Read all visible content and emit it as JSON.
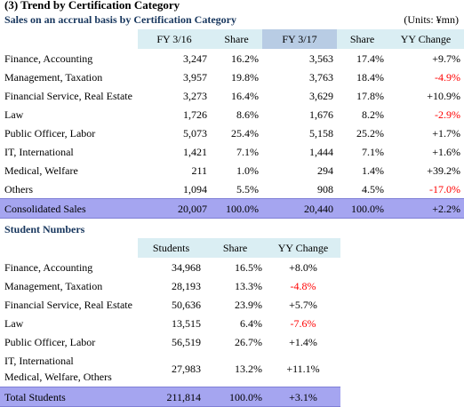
{
  "header": {
    "title": "(3) Trend by Certification Category",
    "subtitle": "Sales on an accrual basis by Certification Category",
    "units": "(Units: ¥mn)"
  },
  "sales": {
    "columns": [
      "FY 3/16",
      "Share",
      "FY 3/17",
      "Share",
      "YY Change"
    ],
    "rows": [
      {
        "label": "Finance, Accounting",
        "fy16": "3,247",
        "share16": "16.2%",
        "fy17": "3,563",
        "share17": "17.4%",
        "change": "+9.7%",
        "negative": false
      },
      {
        "label": "Management, Taxation",
        "fy16": "3,957",
        "share16": "19.8%",
        "fy17": "3,763",
        "share17": "18.4%",
        "change": "-4.9%",
        "negative": true
      },
      {
        "label": "Financial Service, Real Estate",
        "fy16": "3,273",
        "share16": "16.4%",
        "fy17": "3,629",
        "share17": "17.8%",
        "change": "+10.9%",
        "negative": false
      },
      {
        "label": "Law",
        "fy16": "1,726",
        "share16": "8.6%",
        "fy17": "1,676",
        "share17": "8.2%",
        "change": "-2.9%",
        "negative": true
      },
      {
        "label": "Public Officer, Labor",
        "fy16": "5,073",
        "share16": "25.4%",
        "fy17": "5,158",
        "share17": "25.2%",
        "change": "+1.7%",
        "negative": false
      },
      {
        "label": "IT, International",
        "fy16": "1,421",
        "share16": "7.1%",
        "fy17": "1,444",
        "share17": "7.1%",
        "change": "+1.6%",
        "negative": false
      },
      {
        "label": "Medical, Welfare",
        "fy16": "211",
        "share16": "1.0%",
        "fy17": "294",
        "share17": "1.4%",
        "change": "+39.2%",
        "negative": false
      },
      {
        "label": "Others",
        "fy16": "1,094",
        "share16": "5.5%",
        "fy17": "908",
        "share17": "4.5%",
        "change": "-17.0%",
        "negative": true
      }
    ],
    "total": {
      "label": "Consolidated Sales",
      "fy16": "20,007",
      "share16": "100.0%",
      "fy17": "20,440",
      "share17": "100.0%",
      "change": "+2.2%"
    }
  },
  "students": {
    "title": "Student Numbers",
    "columns": [
      "Students",
      "Share",
      "YY Change"
    ],
    "rows": [
      {
        "label": "Finance, Accounting",
        "students": "34,968",
        "share": "16.5%",
        "change": "+8.0%",
        "negative": false
      },
      {
        "label": "Management, Taxation",
        "students": "28,193",
        "share": "13.3%",
        "change": "-4.8%",
        "negative": true
      },
      {
        "label": "Financial Service, Real Estate",
        "students": "50,636",
        "share": "23.9%",
        "change": "+5.7%",
        "negative": false
      },
      {
        "label": "Law",
        "students": "13,515",
        "share": "6.4%",
        "change": "-7.6%",
        "negative": true
      },
      {
        "label": "Public Officer, Labor",
        "students": "56,519",
        "share": "26.7%",
        "change": "+1.4%",
        "negative": false
      }
    ],
    "tall_row": {
      "label_line1": "IT, International",
      "label_line2": "Medical, Welfare, Others",
      "students": "27,983",
      "share": "13.2%",
      "change": "+11.1%"
    },
    "total": {
      "label": "Total Students",
      "students": "211,814",
      "share": "100.0%",
      "change": "+3.1%"
    }
  },
  "colors": {
    "header_light": "#daeef3",
    "header_mid": "#b8cce4",
    "total_row": "#a5a5f0",
    "negative": "#ff0000",
    "subtitle": "#17365d"
  }
}
